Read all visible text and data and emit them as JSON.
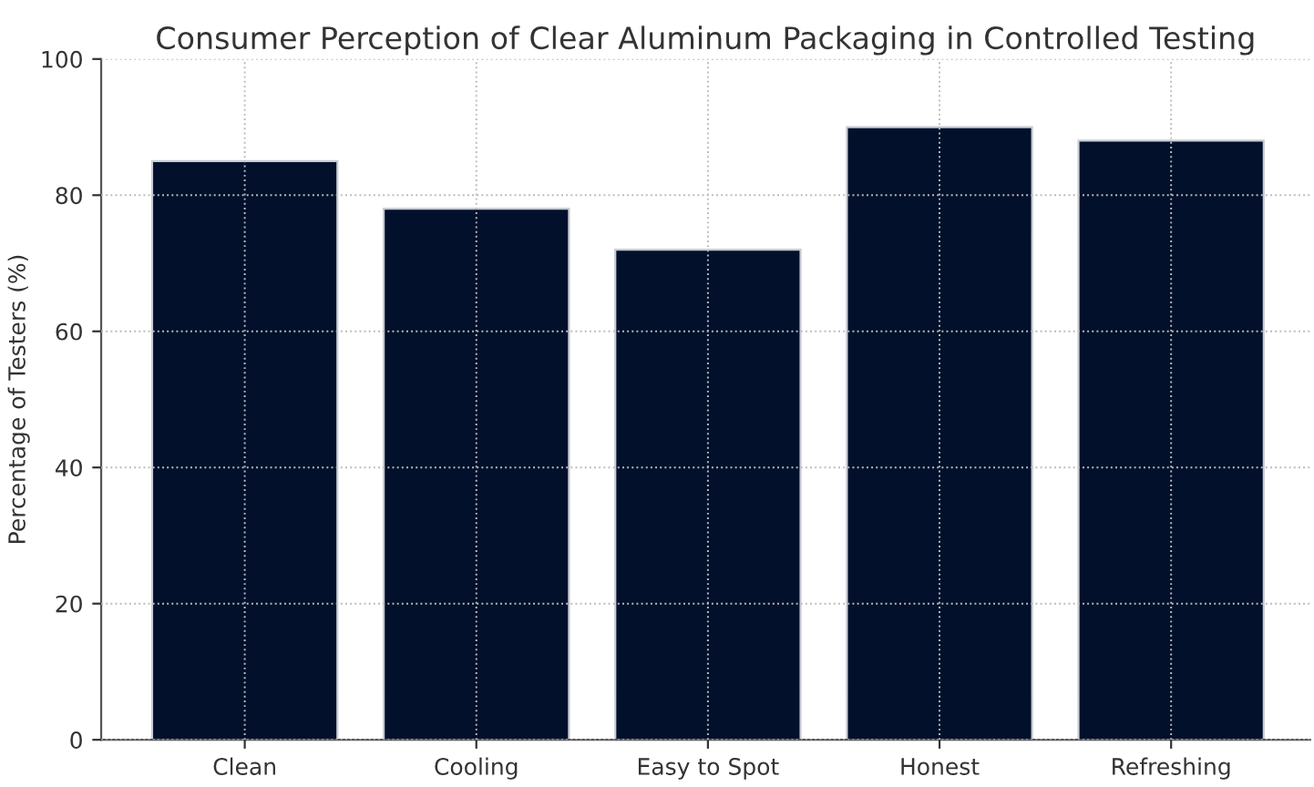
{
  "chart_data": {
    "type": "bar",
    "title": "Consumer Perception of Clear Aluminum Packaging in Controlled Testing",
    "ylabel": "Percentage of Testers (%)",
    "categories": [
      "Clean",
      "Cooling",
      "Easy to Spot",
      "Honest",
      "Refreshing"
    ],
    "values": [
      85,
      78,
      72,
      90,
      88
    ],
    "color": "#02102b",
    "ylim": [
      0,
      100
    ],
    "yticks": [
      0,
      20,
      40,
      60,
      80,
      100
    ],
    "grid": true
  }
}
